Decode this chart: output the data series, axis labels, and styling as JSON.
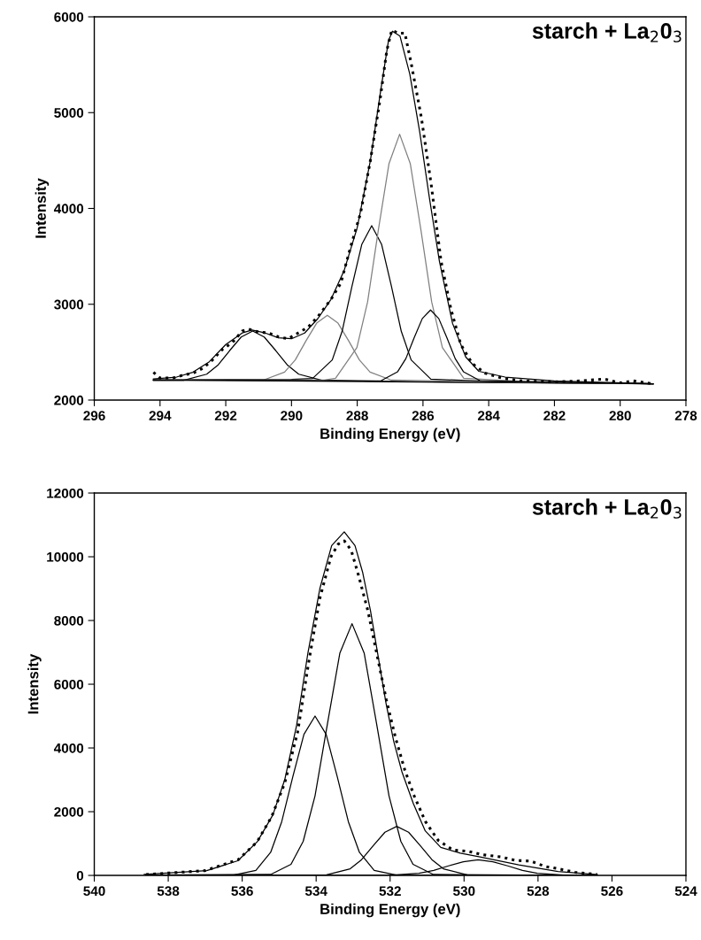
{
  "chart_data": [
    {
      "type": "line",
      "xlabel": "Binding Energy (eV)",
      "ylabel": "Intensity",
      "annotations": [
        "starch + La$_{2}$0$_{3}$"
      ],
      "xlim": [
        296,
        278
      ],
      "xticks": [
        296,
        294,
        292,
        290,
        288,
        286,
        284,
        282,
        280,
        278
      ],
      "ylim": [
        2000,
        6000
      ],
      "yticks": [
        2000,
        3000,
        4000,
        5000,
        6000
      ],
      "grid": false,
      "legend": false,
      "marker": "none",
      "series": [
        {
          "color": "#000000",
          "line_style": "solid",
          "x": [
            294.2,
            279
          ],
          "values": [
            2210,
            2170
          ]
        },
        {
          "color": "#000000",
          "line_style": "solid",
          "x": [
            294.2,
            293.28,
            292.58,
            292.23,
            291.88,
            291.53,
            291.18,
            290.83,
            290.48,
            290.13,
            289.78,
            289.08,
            287,
            284,
            279
          ],
          "values": [
            2205,
            2206,
            2270,
            2368,
            2517,
            2658,
            2720,
            2658,
            2517,
            2368,
            2270,
            2206,
            2195,
            2185,
            2170
          ]
        },
        {
          "color": "#808080",
          "line_style": "solid",
          "x": [
            294.2,
            290.86,
            290.21,
            289.885,
            289.56,
            289.235,
            288.91,
            288.585,
            288.26,
            287.935,
            287.61,
            286.96,
            284,
            279
          ],
          "values": [
            2210,
            2208,
            2292,
            2419,
            2618,
            2803,
            2885,
            2803,
            2618,
            2419,
            2292,
            2208,
            2190,
            2170
          ]
        },
        {
          "color": "#000000",
          "line_style": "solid",
          "x": [
            294.2,
            290,
            289.36,
            288.76,
            288.46,
            288.16,
            287.86,
            287.56,
            287.26,
            286.96,
            286.66,
            286.36,
            285.76,
            284,
            279
          ],
          "values": [
            2210,
            2215,
            2225,
            2419,
            2718,
            3188,
            3626,
            3820,
            3626,
            3188,
            2718,
            2419,
            2218,
            2195,
            2170
          ]
        },
        {
          "color": "#808080",
          "line_style": "solid",
          "x": [
            294.2,
            289,
            288.66,
            288.01,
            287.685,
            287.36,
            287.035,
            286.71,
            286.385,
            286.06,
            285.735,
            285.41,
            284.76,
            283,
            279
          ],
          "values": [
            2210,
            2210,
            2228,
            2548,
            3024,
            3771,
            4466,
            4775,
            4466,
            3771,
            3024,
            2548,
            2228,
            2195,
            2170
          ]
        },
        {
          "color": "#000000",
          "line_style": "solid",
          "x": [
            294.2,
            288,
            287.27,
            286.77,
            286.52,
            286.27,
            286.02,
            285.77,
            285.52,
            285.27,
            285.02,
            284.77,
            284.27,
            282,
            279
          ],
          "values": [
            2210,
            2200,
            2203,
            2296,
            2433,
            2649,
            2851,
            2940,
            2851,
            2649,
            2433,
            2296,
            2203,
            2185,
            2170
          ]
        },
        {
          "color": "#000000",
          "line_style": "solid",
          "x": [
            294.2,
            293.5,
            293,
            292.5,
            292,
            291.5,
            291.2,
            290.8,
            290.4,
            290,
            289.6,
            289.2,
            288.8,
            288.4,
            288,
            287.6,
            287.3,
            287.05,
            286.93,
            286.7,
            286.4,
            286.1,
            285.8,
            285.5,
            285.1,
            284.7,
            284.3,
            283.5,
            282,
            279
          ],
          "values": [
            2220,
            2240,
            2290,
            2400,
            2580,
            2700,
            2730,
            2700,
            2650,
            2640,
            2700,
            2850,
            3050,
            3350,
            3800,
            4500,
            5200,
            5750,
            5850,
            5800,
            5400,
            4800,
            4100,
            3450,
            2800,
            2450,
            2300,
            2240,
            2200,
            2170
          ]
        },
        {
          "color": "#000000",
          "line_style": "dotted",
          "x": [
            294.2,
            294,
            293.6,
            293.3,
            293,
            292.7,
            292.4,
            292.1,
            291.8,
            291.5,
            291.3,
            291,
            290.7,
            290.4,
            290.1,
            289.8,
            289.5,
            289.2,
            288.8,
            288.5,
            288.2,
            287.9,
            287.6,
            287.3,
            287.1,
            286.95,
            286.75,
            286.55,
            286.35,
            286.05,
            285.75,
            285.45,
            285.15,
            284.85,
            284.5,
            284.1,
            283.6,
            283,
            282,
            281.2,
            280.5,
            280,
            279.6,
            279
          ],
          "values": [
            2290,
            2230,
            2230,
            2260,
            2280,
            2330,
            2420,
            2530,
            2600,
            2720,
            2740,
            2710,
            2700,
            2660,
            2640,
            2700,
            2760,
            2870,
            3050,
            3220,
            3600,
            3950,
            4500,
            5150,
            5650,
            5860,
            5830,
            5830,
            5500,
            4950,
            4250,
            3450,
            2950,
            2580,
            2380,
            2280,
            2230,
            2200,
            2190,
            2200,
            2220,
            2180,
            2200,
            2170
          ]
        }
      ]
    },
    {
      "type": "line",
      "xlabel": "Binding Energy (eV)",
      "ylabel": "Intensity",
      "annotations": [
        "starch + La$_{2}$0$_{3}$"
      ],
      "xlim": [
        540,
        524
      ],
      "xticks": [
        540,
        538,
        536,
        534,
        532,
        530,
        528,
        526,
        524
      ],
      "ylim": [
        0,
        12000
      ],
      "yticks": [
        0,
        2000,
        4000,
        6000,
        8000,
        10000,
        12000
      ],
      "grid": false,
      "legend": false,
      "marker": "none",
      "series": [
        {
          "color": "#000000",
          "line_style": "solid",
          "x": [
            538.6,
            536.23,
            535.63,
            535.23,
            534.93,
            534.63,
            534.33,
            534.03,
            533.73,
            533.43,
            533.13,
            532.83,
            532.43,
            531.83,
            526.4
          ],
          "values": [
            10,
            10,
            160,
            725,
            1690,
            3100,
            4430,
            5000,
            4430,
            3100,
            1690,
            725,
            160,
            10,
            0
          ]
        },
        {
          "color": "#000000",
          "line_style": "solid",
          "x": [
            538.6,
            535.23,
            534.68,
            534.35,
            534.03,
            533.69,
            533.36,
            533.03,
            532.7,
            532.37,
            532.03,
            531.71,
            531.38,
            530.83,
            526.4
          ],
          "values": [
            10,
            30,
            350,
            1070,
            2500,
            4790,
            6970,
            7900,
            6970,
            4790,
            2500,
            1070,
            350,
            30,
            0
          ]
        },
        {
          "color": "#000000",
          "line_style": "solid",
          "x": [
            538.6,
            533.72,
            533.08,
            532.77,
            532.45,
            532.14,
            531.82,
            531.5,
            531.19,
            530.87,
            530.56,
            529.92,
            526.4
          ],
          "values": [
            0,
            17,
            208,
            495,
            940,
            1355,
            1540,
            1355,
            940,
            495,
            208,
            17,
            0
          ]
        },
        {
          "color": "#000000",
          "line_style": "solid",
          "x": [
            538.6,
            532.02,
            531.22,
            530.82,
            530.42,
            530.02,
            529.62,
            529.22,
            528.82,
            528.42,
            528.02,
            527.22,
            526.4
          ],
          "values": [
            0,
            5,
            66,
            159,
            300,
            431,
            490,
            431,
            300,
            159,
            66,
            5,
            0
          ]
        },
        {
          "color": "#000000",
          "line_style": "solid",
          "x": [
            538.65,
            536.96,
            536.12,
            535.59,
            535.17,
            534.85,
            534.53,
            534.22,
            533.9,
            533.58,
            533.24,
            532.95,
            532.74,
            532.53,
            532.32,
            532.11,
            531.9,
            531.68,
            531.37,
            531.05,
            530.63,
            530.1,
            529.57,
            528.52,
            527.46,
            526.4
          ],
          "values": [
            30,
            150,
            460,
            1060,
            1900,
            3000,
            4700,
            7000,
            9000,
            10350,
            10780,
            10350,
            9500,
            8300,
            6850,
            5400,
            4200,
            3250,
            2250,
            1400,
            880,
            700,
            580,
            330,
            120,
            30
          ]
        },
        {
          "color": "#000000",
          "line_style": "dotted",
          "x": [
            538.6,
            537,
            536.1,
            535.6,
            535.2,
            534.85,
            534.5,
            534.2,
            533.9,
            533.6,
            533.4,
            533.24,
            533.05,
            532.85,
            532.6,
            532.35,
            532.1,
            531.85,
            531.6,
            531.35,
            531.05,
            530.7,
            530.3,
            529.9,
            529.5,
            529,
            528.6,
            528.2,
            527.8,
            527.5,
            527,
            526.4
          ],
          "values": [
            30,
            150,
            500,
            1050,
            1850,
            2900,
            4500,
            6700,
            8700,
            10000,
            10400,
            10500,
            10200,
            9400,
            8300,
            6900,
            5500,
            4300,
            3300,
            2500,
            1700,
            1100,
            800,
            760,
            650,
            580,
            470,
            450,
            280,
            220,
            100,
            30
          ]
        }
      ]
    }
  ]
}
